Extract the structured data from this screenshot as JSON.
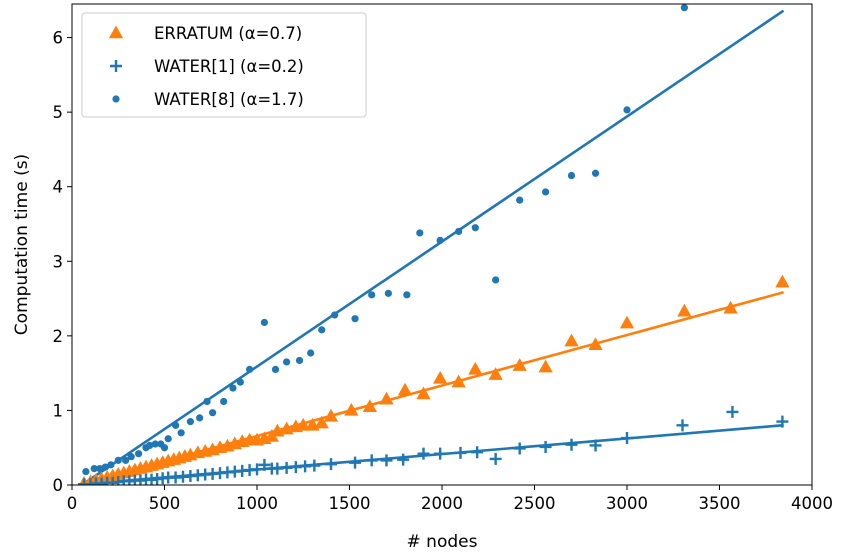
{
  "chart_data": {
    "type": "scatter",
    "xlabel": "# nodes",
    "ylabel": "Computation time (s)",
    "xlim": [
      0,
      4000
    ],
    "ylim": [
      0,
      6.45
    ],
    "xticks": [
      0,
      500,
      1000,
      1500,
      2000,
      2500,
      3000,
      3500,
      4000
    ],
    "xtick_labels": [
      "0",
      "500",
      "1000",
      "1500",
      "2000",
      "2500",
      "3000",
      "3500",
      "4000"
    ],
    "yticks": [
      0,
      1,
      2,
      3,
      4,
      5,
      6
    ],
    "ytick_labels": [
      "0",
      "1",
      "2",
      "3",
      "4",
      "5",
      "6"
    ],
    "grid": false,
    "legend_position": "top-left",
    "series": [
      {
        "name": "ERRATUM (α=0.7)",
        "marker": "triangle",
        "color": "#ff7f0e",
        "points": [
          [
            65,
            0.02
          ],
          [
            100,
            0.04
          ],
          [
            130,
            0.06
          ],
          [
            160,
            0.08
          ],
          [
            190,
            0.1
          ],
          [
            220,
            0.12
          ],
          [
            250,
            0.14
          ],
          [
            280,
            0.16
          ],
          [
            310,
            0.18
          ],
          [
            340,
            0.2
          ],
          [
            370,
            0.22
          ],
          [
            400,
            0.24
          ],
          [
            430,
            0.26
          ],
          [
            460,
            0.28
          ],
          [
            490,
            0.3
          ],
          [
            520,
            0.32
          ],
          [
            550,
            0.34
          ],
          [
            580,
            0.36
          ],
          [
            610,
            0.38
          ],
          [
            640,
            0.4
          ],
          [
            680,
            0.43
          ],
          [
            720,
            0.45
          ],
          [
            760,
            0.47
          ],
          [
            800,
            0.5
          ],
          [
            840,
            0.52
          ],
          [
            880,
            0.55
          ],
          [
            920,
            0.58
          ],
          [
            960,
            0.6
          ],
          [
            1000,
            0.6
          ],
          [
            1040,
            0.62
          ],
          [
            1080,
            0.65
          ],
          [
            1110,
            0.72
          ],
          [
            1160,
            0.75
          ],
          [
            1210,
            0.78
          ],
          [
            1250,
            0.8
          ],
          [
            1300,
            0.8
          ],
          [
            1350,
            0.83
          ],
          [
            1400,
            0.92
          ],
          [
            1510,
            1.0
          ],
          [
            1610,
            1.05
          ],
          [
            1700,
            1.15
          ],
          [
            1800,
            1.27
          ],
          [
            1900,
            1.22
          ],
          [
            1990,
            1.43
          ],
          [
            2090,
            1.38
          ],
          [
            2180,
            1.55
          ],
          [
            2290,
            1.48
          ],
          [
            2420,
            1.6
          ],
          [
            2560,
            1.58
          ],
          [
            2700,
            1.93
          ],
          [
            2830,
            1.88
          ],
          [
            3000,
            2.17
          ],
          [
            3310,
            2.33
          ],
          [
            3560,
            2.37
          ],
          [
            3840,
            2.72
          ]
        ],
        "fit": [
          [
            60,
            0.02
          ],
          [
            3840,
            2.58
          ]
        ]
      },
      {
        "name": "WATER[1] (α=0.2)",
        "marker": "plus",
        "color": "#1f77b4",
        "points": [
          [
            65,
            0.01
          ],
          [
            100,
            0.01
          ],
          [
            130,
            0.02
          ],
          [
            160,
            0.02
          ],
          [
            190,
            0.03
          ],
          [
            220,
            0.03
          ],
          [
            250,
            0.04
          ],
          [
            280,
            0.05
          ],
          [
            310,
            0.05
          ],
          [
            340,
            0.06
          ],
          [
            370,
            0.06
          ],
          [
            400,
            0.07
          ],
          [
            430,
            0.07
          ],
          [
            460,
            0.08
          ],
          [
            490,
            0.09
          ],
          [
            520,
            0.1
          ],
          [
            560,
            0.1
          ],
          [
            600,
            0.11
          ],
          [
            640,
            0.12
          ],
          [
            680,
            0.13
          ],
          [
            720,
            0.14
          ],
          [
            760,
            0.15
          ],
          [
            800,
            0.16
          ],
          [
            840,
            0.17
          ],
          [
            880,
            0.18
          ],
          [
            920,
            0.19
          ],
          [
            960,
            0.2
          ],
          [
            1000,
            0.21
          ],
          [
            1040,
            0.27
          ],
          [
            1080,
            0.22
          ],
          [
            1110,
            0.22
          ],
          [
            1160,
            0.23
          ],
          [
            1210,
            0.24
          ],
          [
            1260,
            0.25
          ],
          [
            1310,
            0.26
          ],
          [
            1400,
            0.28
          ],
          [
            1530,
            0.3
          ],
          [
            1620,
            0.33
          ],
          [
            1700,
            0.33
          ],
          [
            1790,
            0.34
          ],
          [
            1900,
            0.42
          ],
          [
            1990,
            0.42
          ],
          [
            2100,
            0.43
          ],
          [
            2190,
            0.44
          ],
          [
            2290,
            0.35
          ],
          [
            2420,
            0.49
          ],
          [
            2560,
            0.51
          ],
          [
            2700,
            0.54
          ],
          [
            2830,
            0.53
          ],
          [
            3000,
            0.63
          ],
          [
            3300,
            0.8
          ],
          [
            3570,
            0.98
          ],
          [
            3840,
            0.85
          ]
        ],
        "fit": [
          [
            60,
            0.01
          ],
          [
            3840,
            0.8
          ]
        ]
      },
      {
        "name": "WATER[8] (α=1.7)",
        "marker": "circle",
        "color": "#1f77b4",
        "points": [
          [
            75,
            0.18
          ],
          [
            120,
            0.22
          ],
          [
            150,
            0.22
          ],
          [
            180,
            0.24
          ],
          [
            210,
            0.27
          ],
          [
            250,
            0.33
          ],
          [
            290,
            0.33
          ],
          [
            320,
            0.38
          ],
          [
            360,
            0.42
          ],
          [
            400,
            0.5
          ],
          [
            420,
            0.53
          ],
          [
            450,
            0.55
          ],
          [
            480,
            0.55
          ],
          [
            500,
            0.5
          ],
          [
            520,
            0.62
          ],
          [
            560,
            0.8
          ],
          [
            590,
            0.7
          ],
          [
            640,
            0.85
          ],
          [
            690,
            0.9
          ],
          [
            730,
            1.12
          ],
          [
            760,
            0.97
          ],
          [
            820,
            1.12
          ],
          [
            870,
            1.3
          ],
          [
            910,
            1.38
          ],
          [
            960,
            1.55
          ],
          [
            1040,
            2.18
          ],
          [
            1100,
            1.55
          ],
          [
            1160,
            1.65
          ],
          [
            1230,
            1.67
          ],
          [
            1290,
            1.77
          ],
          [
            1350,
            2.08
          ],
          [
            1420,
            2.28
          ],
          [
            1530,
            2.23
          ],
          [
            1620,
            2.55
          ],
          [
            1710,
            2.57
          ],
          [
            1810,
            2.55
          ],
          [
            1880,
            3.38
          ],
          [
            1990,
            3.28
          ],
          [
            2090,
            3.4
          ],
          [
            2180,
            3.45
          ],
          [
            2290,
            2.75
          ],
          [
            2420,
            3.82
          ],
          [
            2560,
            3.93
          ],
          [
            2700,
            4.15
          ],
          [
            2830,
            4.18
          ],
          [
            3000,
            5.03
          ],
          [
            3310,
            6.4
          ]
        ],
        "fit": [
          [
            65,
            0.02
          ],
          [
            3840,
            6.35
          ]
        ]
      }
    ]
  }
}
